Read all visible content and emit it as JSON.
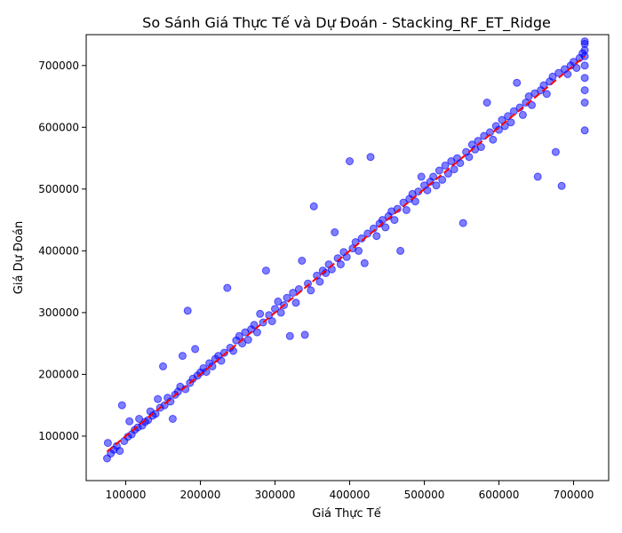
{
  "chart_data": {
    "type": "scatter",
    "title": "So Sánh Giá Thực Tế và Dự Đoán - Stacking_RF_ET_Ridge",
    "xlabel": "Giá Thực Tế",
    "ylabel": "Giá Dự Đoán",
    "xlim": [
      47000,
      747000
    ],
    "ylim": [
      28000,
      750000
    ],
    "xticks": [
      100000,
      200000,
      300000,
      400000,
      500000,
      600000,
      700000
    ],
    "yticks": [
      100000,
      200000,
      300000,
      400000,
      500000,
      600000,
      700000
    ],
    "xtick_labels": [
      "100000",
      "200000",
      "300000",
      "400000",
      "500000",
      "600000",
      "700000"
    ],
    "ytick_labels": [
      "100000",
      "200000",
      "300000",
      "400000",
      "500000",
      "600000",
      "700000"
    ],
    "grid": false,
    "legend": "none",
    "colors": {
      "points": "#0000ff",
      "reference_line": "#ff0000"
    },
    "reference_line": {
      "style": "dashed",
      "x": [
        75000,
        715000
      ],
      "y": [
        75000,
        715000
      ]
    },
    "series": [
      {
        "points": [
          [
            75000,
            64000
          ],
          [
            76000,
            89000
          ],
          [
            80000,
            72000
          ],
          [
            84000,
            78000
          ],
          [
            88000,
            84000
          ],
          [
            92000,
            76000
          ],
          [
            95000,
            150000
          ],
          [
            98000,
            92000
          ],
          [
            103000,
            99000
          ],
          [
            105000,
            124000
          ],
          [
            108000,
            103000
          ],
          [
            112000,
            110000
          ],
          [
            116000,
            114000
          ],
          [
            118000,
            128000
          ],
          [
            122000,
            117000
          ],
          [
            126000,
            123000
          ],
          [
            130000,
            126000
          ],
          [
            133000,
            140000
          ],
          [
            136000,
            133000
          ],
          [
            140000,
            136000
          ],
          [
            143000,
            160000
          ],
          [
            146000,
            146000
          ],
          [
            150000,
            213000
          ],
          [
            152000,
            150000
          ],
          [
            156000,
            162000
          ],
          [
            160000,
            156000
          ],
          [
            163000,
            128000
          ],
          [
            166000,
            167000
          ],
          [
            170000,
            172000
          ],
          [
            173000,
            180000
          ],
          [
            176000,
            230000
          ],
          [
            180000,
            176000
          ],
          [
            183000,
            303000
          ],
          [
            186000,
            186000
          ],
          [
            190000,
            193000
          ],
          [
            193000,
            241000
          ],
          [
            196000,
            198000
          ],
          [
            200000,
            203000
          ],
          [
            204000,
            210000
          ],
          [
            208000,
            204000
          ],
          [
            212000,
            218000
          ],
          [
            216000,
            213000
          ],
          [
            220000,
            225000
          ],
          [
            224000,
            230000
          ],
          [
            228000,
            222000
          ],
          [
            232000,
            235000
          ],
          [
            236000,
            340000
          ],
          [
            240000,
            243000
          ],
          [
            244000,
            238000
          ],
          [
            248000,
            255000
          ],
          [
            252000,
            262000
          ],
          [
            256000,
            250000
          ],
          [
            260000,
            268000
          ],
          [
            264000,
            256000
          ],
          [
            268000,
            273000
          ],
          [
            272000,
            280000
          ],
          [
            276000,
            268000
          ],
          [
            280000,
            298000
          ],
          [
            284000,
            284000
          ],
          [
            288000,
            368000
          ],
          [
            292000,
            296000
          ],
          [
            296000,
            286000
          ],
          [
            300000,
            306000
          ],
          [
            304000,
            318000
          ],
          [
            308000,
            300000
          ],
          [
            312000,
            312000
          ],
          [
            316000,
            324000
          ],
          [
            320000,
            262000
          ],
          [
            324000,
            332000
          ],
          [
            328000,
            316000
          ],
          [
            332000,
            338000
          ],
          [
            336000,
            384000
          ],
          [
            340000,
            264000
          ],
          [
            344000,
            347000
          ],
          [
            348000,
            336000
          ],
          [
            352000,
            472000
          ],
          [
            356000,
            360000
          ],
          [
            360000,
            350000
          ],
          [
            364000,
            368000
          ],
          [
            368000,
            364000
          ],
          [
            372000,
            378000
          ],
          [
            376000,
            370000
          ],
          [
            380000,
            430000
          ],
          [
            384000,
            388000
          ],
          [
            388000,
            378000
          ],
          [
            392000,
            398000
          ],
          [
            396000,
            390000
          ],
          [
            400000,
            545000
          ],
          [
            404000,
            404000
          ],
          [
            408000,
            414000
          ],
          [
            412000,
            400000
          ],
          [
            416000,
            420000
          ],
          [
            420000,
            380000
          ],
          [
            424000,
            428000
          ],
          [
            428000,
            552000
          ],
          [
            432000,
            436000
          ],
          [
            436000,
            424000
          ],
          [
            440000,
            444000
          ],
          [
            444000,
            450000
          ],
          [
            448000,
            438000
          ],
          [
            452000,
            456000
          ],
          [
            456000,
            464000
          ],
          [
            460000,
            450000
          ],
          [
            464000,
            468000
          ],
          [
            468000,
            400000
          ],
          [
            472000,
            478000
          ],
          [
            476000,
            466000
          ],
          [
            480000,
            484000
          ],
          [
            484000,
            492000
          ],
          [
            488000,
            480000
          ],
          [
            492000,
            496000
          ],
          [
            496000,
            520000
          ],
          [
            500000,
            506000
          ],
          [
            504000,
            498000
          ],
          [
            508000,
            512000
          ],
          [
            512000,
            520000
          ],
          [
            516000,
            506000
          ],
          [
            520000,
            530000
          ],
          [
            524000,
            515000
          ],
          [
            528000,
            538000
          ],
          [
            532000,
            525000
          ],
          [
            536000,
            545000
          ],
          [
            540000,
            532000
          ],
          [
            544000,
            550000
          ],
          [
            548000,
            542000
          ],
          [
            552000,
            445000
          ],
          [
            556000,
            560000
          ],
          [
            560000,
            552000
          ],
          [
            564000,
            572000
          ],
          [
            568000,
            564000
          ],
          [
            572000,
            578000
          ],
          [
            576000,
            568000
          ],
          [
            580000,
            586000
          ],
          [
            584000,
            640000
          ],
          [
            588000,
            592000
          ],
          [
            592000,
            580000
          ],
          [
            596000,
            602000
          ],
          [
            600000,
            596000
          ],
          [
            604000,
            612000
          ],
          [
            608000,
            602000
          ],
          [
            612000,
            618000
          ],
          [
            616000,
            608000
          ],
          [
            620000,
            626000
          ],
          [
            624000,
            672000
          ],
          [
            628000,
            632000
          ],
          [
            632000,
            620000
          ],
          [
            636000,
            640000
          ],
          [
            640000,
            650000
          ],
          [
            644000,
            636000
          ],
          [
            648000,
            655000
          ],
          [
            652000,
            520000
          ],
          [
            656000,
            660000
          ],
          [
            660000,
            668000
          ],
          [
            664000,
            654000
          ],
          [
            668000,
            674000
          ],
          [
            672000,
            682000
          ],
          [
            676000,
            560000
          ],
          [
            680000,
            688000
          ],
          [
            684000,
            505000
          ],
          [
            688000,
            694000
          ],
          [
            692000,
            686000
          ],
          [
            696000,
            700000
          ],
          [
            700000,
            706000
          ],
          [
            704000,
            696000
          ],
          [
            708000,
            712000
          ],
          [
            712000,
            720000
          ],
          [
            715000,
            595000
          ],
          [
            715000,
            640000
          ],
          [
            715000,
            680000
          ],
          [
            715000,
            700000
          ],
          [
            715000,
            715000
          ],
          [
            715000,
            725000
          ],
          [
            715000,
            735000
          ],
          [
            715000,
            739000
          ],
          [
            715000,
            660000
          ]
        ]
      }
    ]
  }
}
